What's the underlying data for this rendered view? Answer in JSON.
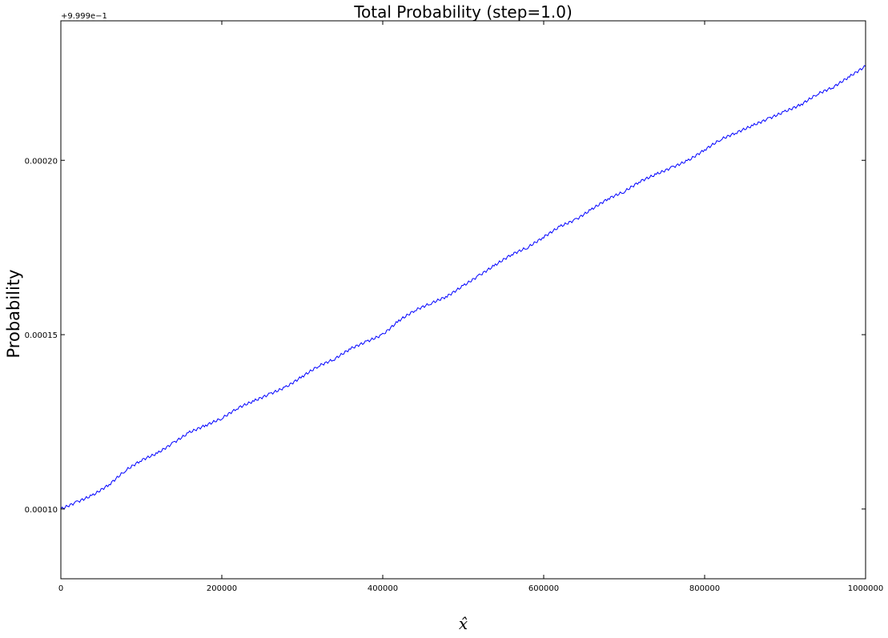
{
  "chart_data": {
    "type": "line",
    "title": "Total Probability (step=1.0)",
    "xlabel": "x̂",
    "ylabel": "Probability",
    "y_offset_label": "+9.999e−1",
    "xlim": [
      0,
      1000000
    ],
    "ylim": [
      8e-05,
      0.00024
    ],
    "grid": false,
    "legend": "none",
    "line_color": "#0000ff",
    "x_ticks": [
      0,
      200000,
      400000,
      600000,
      800000,
      1000000
    ],
    "x_tick_labels": [
      "0",
      "200000",
      "400000",
      "600000",
      "800000",
      "1000000"
    ],
    "y_ticks": [
      0.0001,
      0.00015,
      0.0002
    ],
    "y_tick_labels": [
      "0.00010",
      "0.00015",
      "0.00020"
    ],
    "series": [
      {
        "x": [
          0,
          20000,
          40000,
          60000,
          80000,
          100000,
          120000,
          140000,
          160000,
          180000,
          200000,
          220000,
          240000,
          260000,
          280000,
          300000,
          320000,
          340000,
          360000,
          380000,
          400000,
          420000,
          440000,
          460000,
          480000,
          500000,
          520000,
          540000,
          560000,
          580000,
          600000,
          620000,
          640000,
          660000,
          680000,
          700000,
          720000,
          740000,
          760000,
          780000,
          800000,
          820000,
          840000,
          860000,
          880000,
          900000,
          920000,
          940000,
          960000,
          980000,
          1000000
        ],
        "values": [
          0.0001,
          0.000102,
          0.000104,
          0.000107,
          0.000111,
          0.000114,
          0.000116,
          0.000119,
          0.000122,
          0.000124,
          0.000126,
          0.000129,
          0.000131,
          0.000133,
          0.000135,
          0.000138,
          0.000141,
          0.000143,
          0.000146,
          0.000148,
          0.00015,
          0.000154,
          0.000157,
          0.000159,
          0.000161,
          0.000164,
          0.000167,
          0.00017,
          0.000173,
          0.000175,
          0.000178,
          0.000181,
          0.000183,
          0.000186,
          0.000189,
          0.000191,
          0.000194,
          0.000196,
          0.000198,
          0.0002,
          0.000203,
          0.000206,
          0.000208,
          0.00021,
          0.000212,
          0.000214,
          0.000216,
          0.000219,
          0.000221,
          0.000224,
          0.000227
        ]
      }
    ]
  }
}
